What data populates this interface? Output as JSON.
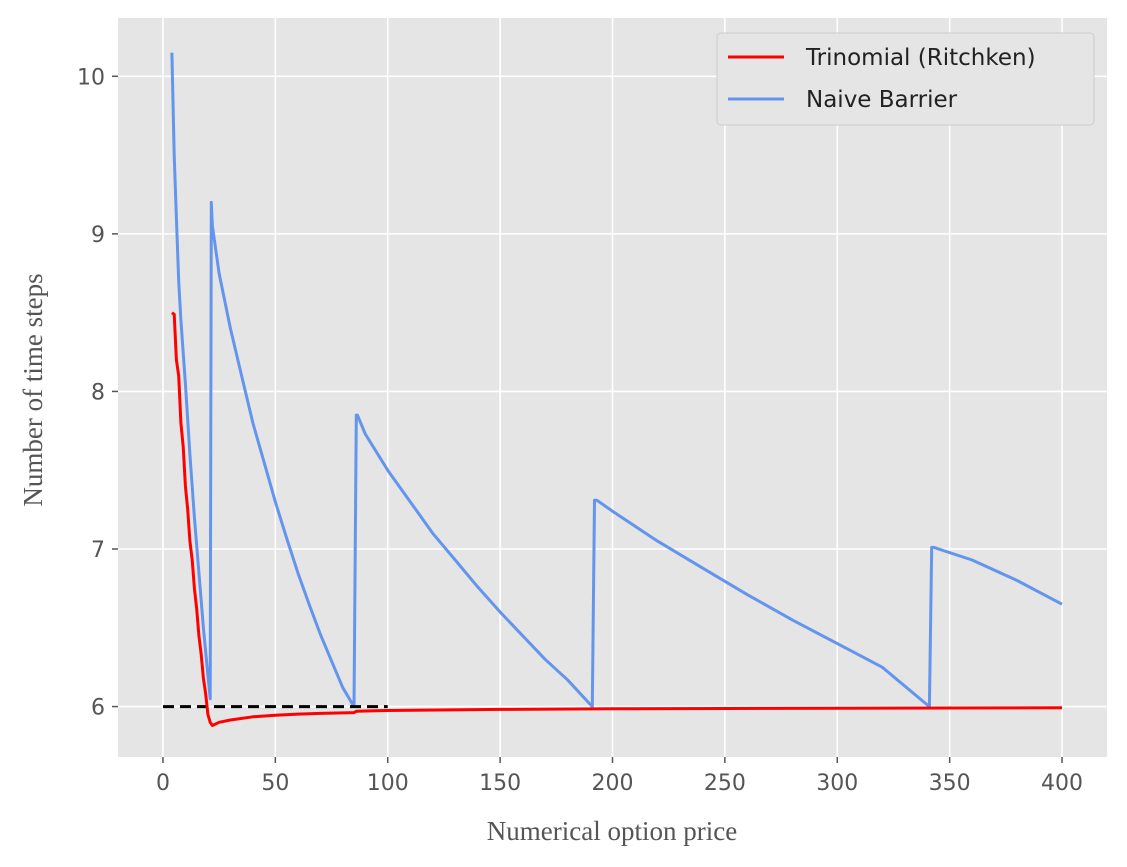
{
  "chart_data": {
    "type": "line",
    "title": "",
    "xlabel": "Numerical option price",
    "ylabel": "Number of time steps",
    "xlim": [
      -20,
      420
    ],
    "ylim": [
      5.68,
      10.37
    ],
    "xticks": [
      0,
      50,
      100,
      150,
      200,
      250,
      300,
      350,
      400
    ],
    "yticks": [
      6,
      7,
      8,
      9,
      10
    ],
    "grid": true,
    "legend_position": "top-right",
    "series": [
      {
        "name": "Trinomial (Ritchken)",
        "color": "#ff0000",
        "x": [
          4,
          5,
          6,
          7,
          8,
          9,
          10,
          11,
          12,
          13,
          14,
          15,
          16,
          17,
          18,
          19,
          20,
          21,
          22,
          25,
          30,
          40,
          50,
          60,
          70,
          80,
          85,
          86,
          90,
          100,
          150,
          200,
          250,
          300,
          350,
          400
        ],
        "y": [
          8.5,
          8.49,
          8.2,
          8.1,
          7.8,
          7.65,
          7.4,
          7.25,
          7.05,
          6.93,
          6.75,
          6.62,
          6.45,
          6.33,
          6.18,
          6.08,
          5.95,
          5.9,
          5.88,
          5.9,
          5.915,
          5.935,
          5.945,
          5.952,
          5.957,
          5.96,
          5.962,
          5.97,
          5.972,
          5.975,
          5.982,
          5.986,
          5.988,
          5.99,
          5.991,
          5.992
        ]
      },
      {
        "name": "Naive Barrier",
        "color": "#6495ed",
        "x": [
          4,
          5,
          6,
          7,
          8,
          10,
          12,
          14,
          16,
          18,
          20,
          21,
          21.5,
          22,
          25,
          30,
          35,
          40,
          45,
          50,
          55,
          60,
          65,
          70,
          75,
          80,
          85,
          86,
          86.5,
          90,
          100,
          110,
          120,
          130,
          140,
          150,
          160,
          170,
          180,
          191,
          192,
          193,
          200,
          220,
          240,
          260,
          280,
          300,
          320,
          341,
          342,
          343,
          360,
          380,
          400
        ],
        "y": [
          10.15,
          9.5,
          9.1,
          8.7,
          8.45,
          8.05,
          7.6,
          7.2,
          6.85,
          6.5,
          6.2,
          6.05,
          9.2,
          9.05,
          8.75,
          8.4,
          8.1,
          7.8,
          7.55,
          7.3,
          7.07,
          6.85,
          6.65,
          6.46,
          6.29,
          6.12,
          6.0,
          7.85,
          7.85,
          7.73,
          7.5,
          7.3,
          7.1,
          6.93,
          6.76,
          6.6,
          6.45,
          6.3,
          6.17,
          6.0,
          7.31,
          7.31,
          7.24,
          7.05,
          6.88,
          6.71,
          6.55,
          6.4,
          6.25,
          6.0,
          7.01,
          7.01,
          6.93,
          6.8,
          6.65
        ]
      },
      {
        "color": "#000000",
        "dashed": true,
        "x": [
          0,
          100
        ],
        "y": [
          6,
          6
        ]
      }
    ]
  }
}
